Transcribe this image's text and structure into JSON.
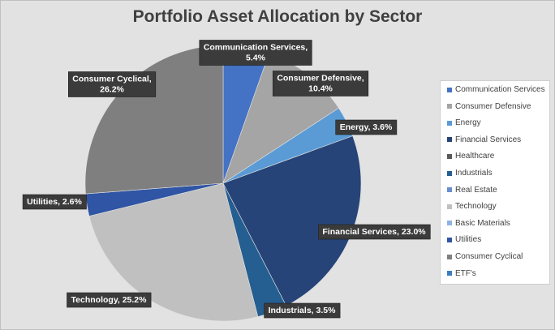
{
  "chart_data": {
    "type": "pie",
    "title": "Portfolio Asset Allocation by Sector",
    "start_angle_deg": 0,
    "direction": "clockwise",
    "legend_position": "right",
    "slices": [
      {
        "name": "Communication Services",
        "value": 5.4,
        "label": "Communication Services,\n5.4%",
        "color": "#4472c4"
      },
      {
        "name": "Consumer Defensive",
        "value": 10.4,
        "label": "Consumer Defensive,\n10.4%",
        "color": "#a5a5a5"
      },
      {
        "name": "Energy",
        "value": 3.6,
        "label": "Energy, 3.6%",
        "color": "#5b9bd5"
      },
      {
        "name": "Financial Services",
        "value": 23.0,
        "label": "Financial Services, 23.0%",
        "color": "#264478"
      },
      {
        "name": "Industrials",
        "value": 3.5,
        "label": "Industrials, 3.5%",
        "color": "#255e91"
      },
      {
        "name": "Technology",
        "value": 25.2,
        "label": "Technology, 25.2%",
        "color": "#c0c0c0"
      },
      {
        "name": "Utilities",
        "value": 2.6,
        "label": "Utilities, 2.6%",
        "color": "#2f55a4"
      },
      {
        "name": "Consumer Cyclical",
        "value": 26.2,
        "label": "Consumer Cyclical,\n26.2%",
        "color": "#7f7f7f"
      }
    ],
    "legend": [
      {
        "name": "Communication Services",
        "color": "#4472c4"
      },
      {
        "name": "Consumer Defensive",
        "color": "#a5a5a5"
      },
      {
        "name": "Energy",
        "color": "#5b9bd5"
      },
      {
        "name": "Financial Services",
        "color": "#264478"
      },
      {
        "name": "Healthcare",
        "color": "#595959"
      },
      {
        "name": "Industrials",
        "color": "#255e91"
      },
      {
        "name": "Real Estate",
        "color": "#698ed0"
      },
      {
        "name": "Technology",
        "color": "#c0c0c0"
      },
      {
        "name": "Basic Materials",
        "color": "#8cb4e2"
      },
      {
        "name": "Utilities",
        "color": "#2f55a4"
      },
      {
        "name": "Consumer Cyclical",
        "color": "#7f7f7f"
      },
      {
        "name": "ETF's",
        "color": "#3a7ebd"
      }
    ]
  }
}
